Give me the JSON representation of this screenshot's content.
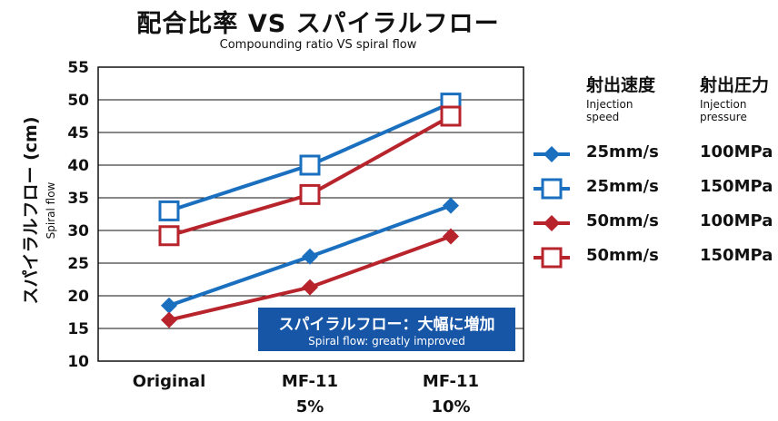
{
  "title": "配合比率 VS スパイラルフロー",
  "subtitle": "Compounding ratio VS spiral flow",
  "chart_data": {
    "type": "line",
    "title": "配合比率 VS スパイラルフロー",
    "subtitle": "Compounding ratio VS spiral flow",
    "categories": [
      {
        "line1": "Original",
        "line2": ""
      },
      {
        "line1": "MF-11",
        "line2": "5%"
      },
      {
        "line1": "MF-11",
        "line2": "10%"
      }
    ],
    "ylabel": "スパイラルフロー (cm)",
    "ylabel_en": "Spiral flow",
    "ylim": [
      10,
      55
    ],
    "yticks": [
      10,
      15,
      20,
      25,
      30,
      35,
      40,
      45,
      50,
      55
    ],
    "grid": true,
    "series": [
      {
        "speed": "25mm/s",
        "pressure": "100MPa",
        "color": "#1a6fbf",
        "marker": "filled-diamond",
        "values": [
          18.5,
          26,
          33.8
        ]
      },
      {
        "speed": "25mm/s",
        "pressure": "150MPa",
        "color": "#1a6fbf",
        "marker": "open-square",
        "values": [
          33,
          40,
          49.5
        ]
      },
      {
        "speed": "50mm/s",
        "pressure": "100MPa",
        "color": "#b8242c",
        "marker": "filled-diamond",
        "values": [
          16.3,
          21.3,
          29.1
        ]
      },
      {
        "speed": "50mm/s",
        "pressure": "150MPa",
        "color": "#b8242c",
        "marker": "open-square",
        "values": [
          29.2,
          35.5,
          47.5
        ]
      }
    ]
  },
  "legend": {
    "speed_header": "射出速度",
    "speed_header_en": "Injection speed",
    "pressure_header": "射出圧力",
    "pressure_header_en": "Injection pressure"
  },
  "callout": {
    "ja": "スパイラルフロー：大幅に増加",
    "en": "Spiral flow: greatly improved"
  }
}
